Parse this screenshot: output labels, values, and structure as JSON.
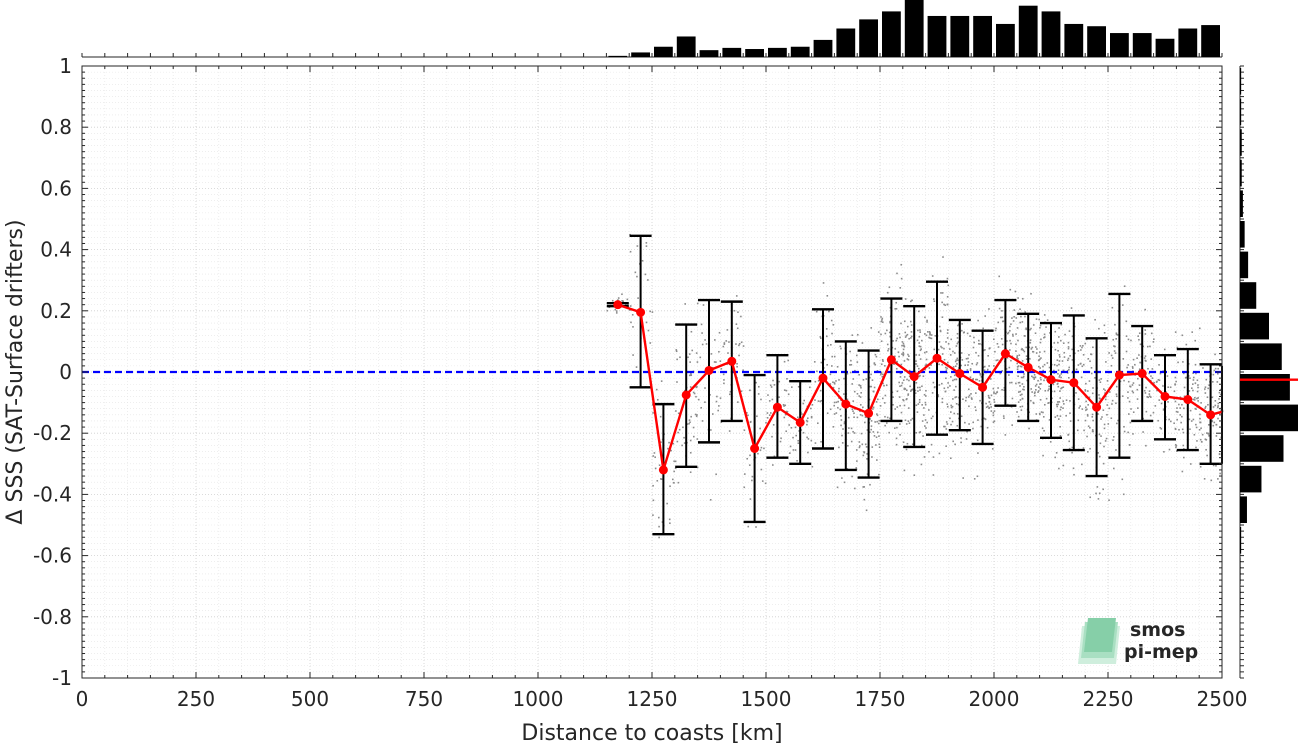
{
  "chart_data": {
    "type": "scatter",
    "xlabel": "Distance to coasts [km]",
    "ylabel": "Δ SSS (SAT-Surface drifters)",
    "xlim": [
      0,
      2500
    ],
    "ylim": [
      -1,
      1
    ],
    "x_ticks": [
      "0",
      "250",
      "500",
      "750",
      "1000",
      "1250",
      "1500",
      "1750",
      "2000",
      "2250",
      "2500"
    ],
    "y_ticks": [
      "-1",
      "-0.8",
      "-0.6",
      "-0.4",
      "-0.2",
      "0",
      "0.2",
      "0.4",
      "0.6",
      "0.8",
      "1"
    ],
    "grid": true,
    "zero_line": {
      "y": 0,
      "color": "#0000ff",
      "style": "dashed"
    },
    "binned_mean": {
      "color": "#ff0000",
      "points": [
        {
          "x": 1175,
          "y": 0.22,
          "lo": 0.215,
          "hi": 0.225
        },
        {
          "x": 1225,
          "y": 0.195,
          "lo": -0.05,
          "hi": 0.445
        },
        {
          "x": 1275,
          "y": -0.32,
          "lo": -0.53,
          "hi": -0.105
        },
        {
          "x": 1325,
          "y": -0.075,
          "lo": -0.31,
          "hi": 0.155
        },
        {
          "x": 1375,
          "y": 0.005,
          "lo": -0.23,
          "hi": 0.235
        },
        {
          "x": 1425,
          "y": 0.035,
          "lo": -0.16,
          "hi": 0.23
        },
        {
          "x": 1475,
          "y": -0.25,
          "lo": -0.49,
          "hi": -0.01
        },
        {
          "x": 1525,
          "y": -0.115,
          "lo": -0.28,
          "hi": 0.055
        },
        {
          "x": 1575,
          "y": -0.165,
          "lo": -0.3,
          "hi": -0.03
        },
        {
          "x": 1625,
          "y": -0.02,
          "lo": -0.25,
          "hi": 0.205
        },
        {
          "x": 1675,
          "y": -0.105,
          "lo": -0.32,
          "hi": 0.1
        },
        {
          "x": 1725,
          "y": -0.135,
          "lo": -0.345,
          "hi": 0.07
        },
        {
          "x": 1775,
          "y": 0.04,
          "lo": -0.16,
          "hi": 0.24
        },
        {
          "x": 1825,
          "y": -0.015,
          "lo": -0.245,
          "hi": 0.215
        },
        {
          "x": 1875,
          "y": 0.045,
          "lo": -0.205,
          "hi": 0.295
        },
        {
          "x": 1925,
          "y": -0.005,
          "lo": -0.19,
          "hi": 0.17
        },
        {
          "x": 1975,
          "y": -0.05,
          "lo": -0.235,
          "hi": 0.135
        },
        {
          "x": 2025,
          "y": 0.06,
          "lo": -0.11,
          "hi": 0.235
        },
        {
          "x": 2075,
          "y": 0.015,
          "lo": -0.16,
          "hi": 0.19
        },
        {
          "x": 2125,
          "y": -0.025,
          "lo": -0.215,
          "hi": 0.16
        },
        {
          "x": 2175,
          "y": -0.035,
          "lo": -0.255,
          "hi": 0.185
        },
        {
          "x": 2225,
          "y": -0.115,
          "lo": -0.34,
          "hi": 0.11
        },
        {
          "x": 2275,
          "y": -0.01,
          "lo": -0.28,
          "hi": 0.255
        },
        {
          "x": 2325,
          "y": -0.005,
          "lo": -0.16,
          "hi": 0.15
        },
        {
          "x": 2375,
          "y": -0.08,
          "lo": -0.22,
          "hi": 0.055
        },
        {
          "x": 2425,
          "y": -0.09,
          "lo": -0.255,
          "hi": 0.075
        },
        {
          "x": 2475,
          "y": -0.14,
          "lo": -0.3,
          "hi": 0.025
        },
        {
          "x": 2500,
          "y": -0.13,
          "lo": -0.3,
          "hi": 0.02
        }
      ]
    },
    "top_histogram": {
      "bin_width": 50,
      "bins": [
        {
          "x": 1175,
          "value": 0.02
        },
        {
          "x": 1225,
          "value": 0.08
        },
        {
          "x": 1275,
          "value": 0.18
        },
        {
          "x": 1325,
          "value": 0.36
        },
        {
          "x": 1375,
          "value": 0.12
        },
        {
          "x": 1425,
          "value": 0.16
        },
        {
          "x": 1475,
          "value": 0.14
        },
        {
          "x": 1525,
          "value": 0.16
        },
        {
          "x": 1575,
          "value": 0.18
        },
        {
          "x": 1625,
          "value": 0.3
        },
        {
          "x": 1675,
          "value": 0.5
        },
        {
          "x": 1725,
          "value": 0.66
        },
        {
          "x": 1775,
          "value": 0.8
        },
        {
          "x": 1825,
          "value": 1.0
        },
        {
          "x": 1875,
          "value": 0.72
        },
        {
          "x": 1925,
          "value": 0.72
        },
        {
          "x": 1975,
          "value": 0.72
        },
        {
          "x": 2025,
          "value": 0.58
        },
        {
          "x": 2075,
          "value": 0.9
        },
        {
          "x": 2125,
          "value": 0.8
        },
        {
          "x": 2175,
          "value": 0.58
        },
        {
          "x": 2225,
          "value": 0.54
        },
        {
          "x": 2275,
          "value": 0.42
        },
        {
          "x": 2325,
          "value": 0.42
        },
        {
          "x": 2375,
          "value": 0.32
        },
        {
          "x": 2425,
          "value": 0.5
        },
        {
          "x": 2475,
          "value": 0.56
        }
      ]
    },
    "right_histogram": {
      "bin_width": 0.1,
      "bins": [
        {
          "y": 0.95,
          "value": 0.02
        },
        {
          "y": 0.85,
          "value": 0.02
        },
        {
          "y": 0.75,
          "value": 0.03
        },
        {
          "y": 0.65,
          "value": 0.03
        },
        {
          "y": 0.55,
          "value": 0.05
        },
        {
          "y": 0.45,
          "value": 0.08
        },
        {
          "y": 0.35,
          "value": 0.14
        },
        {
          "y": 0.25,
          "value": 0.28
        },
        {
          "y": 0.15,
          "value": 0.5
        },
        {
          "y": 0.05,
          "value": 0.72
        },
        {
          "y": -0.05,
          "value": 0.86
        },
        {
          "y": -0.15,
          "value": 1.0
        },
        {
          "y": -0.25,
          "value": 0.75
        },
        {
          "y": -0.35,
          "value": 0.37
        },
        {
          "y": -0.45,
          "value": 0.12
        },
        {
          "y": -0.55,
          "value": 0.02
        },
        {
          "y": -0.65,
          "value": 0.01
        },
        {
          "y": -0.75,
          "value": 0.01
        }
      ],
      "mean_marker": {
        "y": -0.025,
        "color": "#ff0000"
      }
    }
  },
  "logo": {
    "line1": "smos",
    "line2": "pi-mep",
    "color": "#5fbf8f"
  }
}
